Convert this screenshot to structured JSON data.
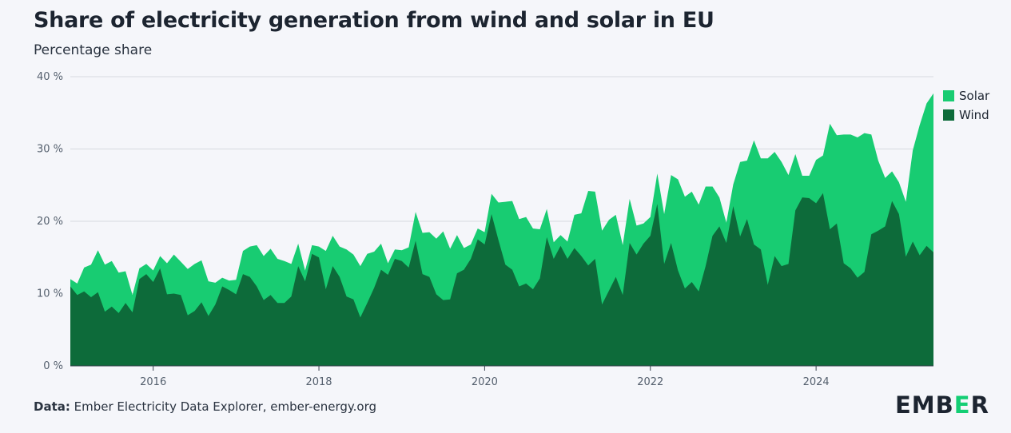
{
  "title": "Share of electricity generation from wind and solar in EU",
  "subtitle": "Percentage share",
  "source": {
    "prefix": "Data:",
    "text": "Ember Electricity Data Explorer, ember-energy.org"
  },
  "logo": {
    "before": "EMB",
    "mark": "E",
    "after": "R"
  },
  "legend": [
    {
      "name": "Solar",
      "color": "#18cc72"
    },
    {
      "name": "Wind",
      "color": "#0d6b3a"
    }
  ],
  "chart_data": {
    "type": "area",
    "stacked": true,
    "x_start": "2015-01",
    "x_frequency": "monthly",
    "xlim": [
      "2015-01",
      "2025-06"
    ],
    "ylim": [
      0,
      40
    ],
    "y_ticks": [
      "0 %",
      "10 %",
      "20 %",
      "30 %",
      "40 %"
    ],
    "x_ticks": [
      {
        "label": "2016",
        "date": "2016-01"
      },
      {
        "label": "2018",
        "date": "2018-01"
      },
      {
        "label": "2020",
        "date": "2020-01"
      },
      {
        "label": "2022",
        "date": "2022-01"
      },
      {
        "label": "2024",
        "date": "2024-01"
      }
    ],
    "grid": true,
    "legend_position": "top-right",
    "series": [
      {
        "name": "Wind",
        "color": "#0d6b3a",
        "values": [
          11.0,
          9.8,
          10.3,
          9.5,
          10.2,
          7.5,
          8.2,
          7.3,
          8.7,
          7.4,
          12.0,
          12.7,
          11.6,
          13.5,
          9.9,
          10.0,
          9.8,
          7.0,
          7.6,
          8.8,
          6.9,
          8.5,
          11.0,
          10.5,
          9.9,
          12.7,
          12.3,
          11.0,
          9.1,
          9.8,
          8.7,
          8.7,
          9.6,
          13.8,
          11.7,
          15.5,
          15.0,
          10.6,
          13.8,
          12.3,
          9.6,
          9.2,
          6.7,
          8.7,
          10.8,
          13.3,
          12.6,
          14.8,
          14.5,
          13.6,
          17.3,
          12.7,
          12.3,
          9.9,
          9.1,
          9.2,
          12.8,
          13.3,
          14.8,
          17.5,
          16.8,
          21.0,
          17.4,
          14.0,
          13.3,
          11.0,
          11.4,
          10.6,
          12.1,
          17.8,
          14.8,
          16.6,
          14.8,
          16.3,
          15.2,
          13.9,
          14.8,
          8.5,
          10.4,
          12.3,
          9.8,
          17.0,
          15.4,
          16.9,
          18.0,
          22.4,
          14.1,
          17.0,
          13.2,
          10.7,
          11.6,
          10.3,
          13.8,
          18.0,
          19.3,
          17.0,
          22.1,
          17.9,
          20.3,
          16.8,
          16.1,
          11.2,
          15.2,
          13.8,
          14.1,
          21.5,
          23.3,
          23.2,
          22.5,
          23.9,
          18.9,
          19.7,
          14.2,
          13.5,
          12.2,
          13.0,
          18.2,
          18.7,
          19.3,
          22.8,
          21.0,
          15.1,
          17.2,
          15.3,
          16.6,
          15.7
        ]
      },
      {
        "name": "Solar",
        "color": "#18cc72",
        "values": [
          1.0,
          1.6,
          3.3,
          4.5,
          5.8,
          6.5,
          6.3,
          5.6,
          4.4,
          2.4,
          1.5,
          1.4,
          1.6,
          1.7,
          4.3,
          5.4,
          4.6,
          6.4,
          6.5,
          5.8,
          4.8,
          3.0,
          1.2,
          1.3,
          2.0,
          3.2,
          4.2,
          5.7,
          6.1,
          6.4,
          6.1,
          5.8,
          4.5,
          3.1,
          1.5,
          1.2,
          1.5,
          5.3,
          4.2,
          4.2,
          6.5,
          6.2,
          7.1,
          6.8,
          5.0,
          3.6,
          1.6,
          1.3,
          1.5,
          2.8,
          4.0,
          5.7,
          6.2,
          7.7,
          9.5,
          7.0,
          5.3,
          3.0,
          2.0,
          1.5,
          1.7,
          2.8,
          5.2,
          8.7,
          9.5,
          9.3,
          9.2,
          8.4,
          6.8,
          3.9,
          2.3,
          1.5,
          2.4,
          4.6,
          5.9,
          10.3,
          9.3,
          10.2,
          9.8,
          8.6,
          6.9,
          6.1,
          4.0,
          2.8,
          2.6,
          4.2,
          6.9,
          9.4,
          12.6,
          12.7,
          12.5,
          12.0,
          11.0,
          6.8,
          4.0,
          2.8,
          3.0,
          10.3,
          8.1,
          14.4,
          12.6,
          17.5,
          14.4,
          14.4,
          12.3,
          7.8,
          3.0,
          3.1,
          6.0,
          5.2,
          14.6,
          12.2,
          17.8,
          18.5,
          19.4,
          19.2,
          13.8,
          9.7,
          6.7,
          4.1,
          4.4,
          7.6,
          12.6,
          18.0,
          19.7,
          22.0
        ]
      }
    ]
  }
}
